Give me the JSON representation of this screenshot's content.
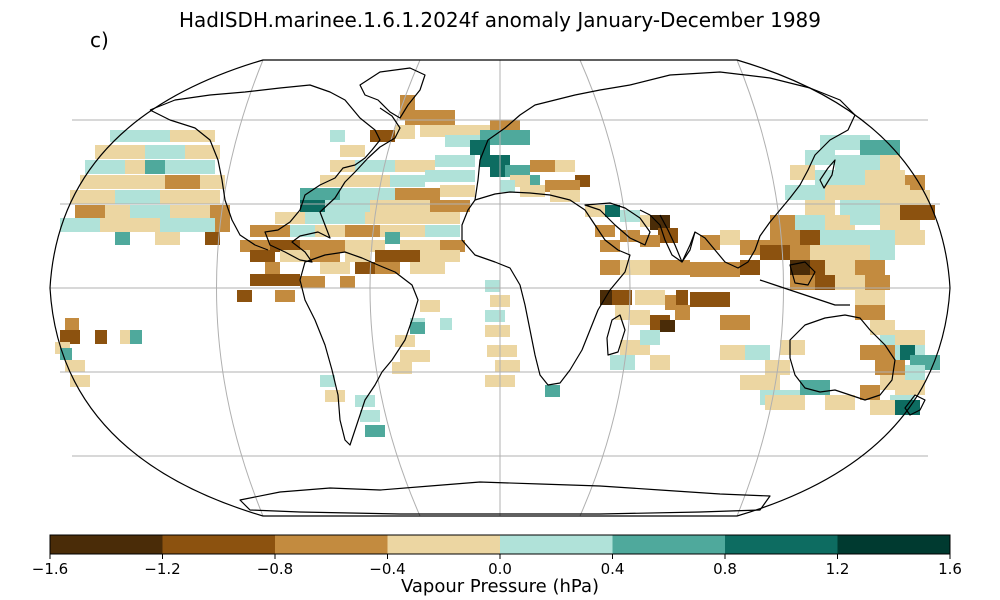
{
  "title": "HadISDH.marinee.1.6.1.2024f anomaly January-December 1989",
  "panel_label": "c)",
  "colorbar": {
    "label": "Vapour Pressure (hPa)",
    "ticks": [
      "−1.6",
      "−1.2",
      "−0.8",
      "−0.4",
      "0.0",
      "0.4",
      "0.8",
      "1.2",
      "1.6"
    ],
    "colors": [
      "#4a2c08",
      "#8c520f",
      "#c38b3f",
      "#ecd6a2",
      "#b0e2d9",
      "#4fa99c",
      "#0d6c61",
      "#003a30"
    ]
  },
  "map": {
    "projection": "Robinson",
    "land_fill": "#ffffff",
    "coastline_color": "#000000",
    "gridline_color": "#b0b0b0"
  }
}
